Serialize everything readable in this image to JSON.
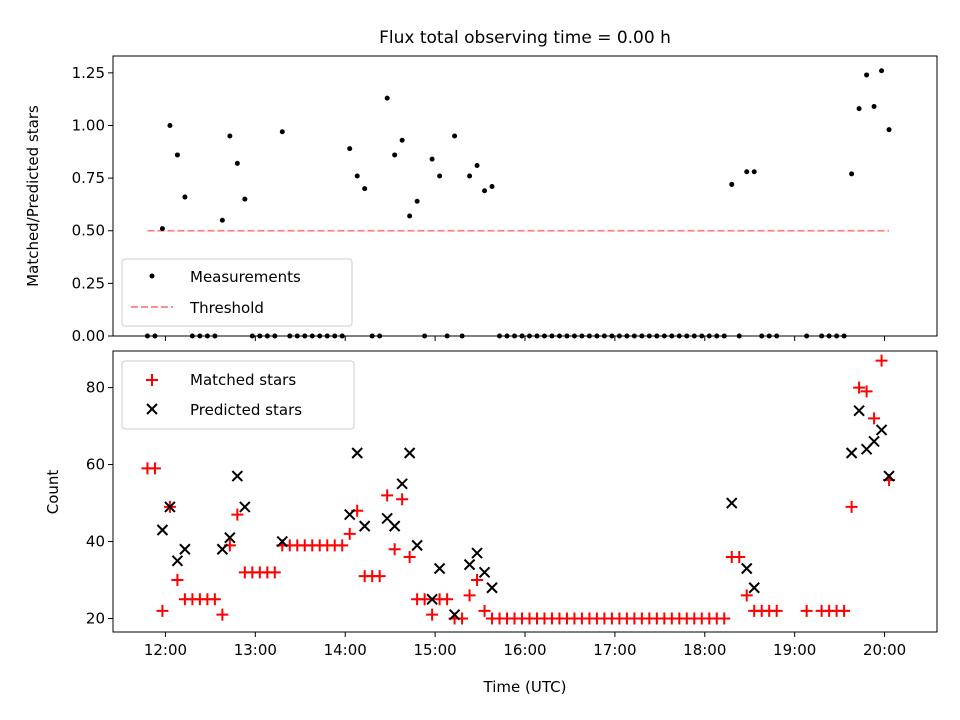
{
  "chart_data": [
    {
      "type": "scatter",
      "title": "Flux total observing time = 0.00 h",
      "xlabel": "",
      "ylabel": "Matched/Predicted stars",
      "xlim": [
        "11:25",
        "20:35"
      ],
      "ylim": [
        0,
        1.33
      ],
      "yticks": [
        "0.00",
        "0.25",
        "0.50",
        "0.75",
        "1.00",
        "1.25"
      ],
      "grid": false,
      "legend_position": "lower-left",
      "series": [
        {
          "name": "Measurements",
          "color": "#000000",
          "marker": "dot",
          "points": [
            [
              "11:48",
              0
            ],
            [
              "11:53",
              0
            ],
            [
              "11:58",
              0.51
            ],
            [
              "12:03",
              1.0
            ],
            [
              "12:08",
              0.86
            ],
            [
              "12:13",
              0.66
            ],
            [
              "12:18",
              0
            ],
            [
              "12:23",
              0
            ],
            [
              "12:28",
              0
            ],
            [
              "12:33",
              0
            ],
            [
              "12:38",
              0.55
            ],
            [
              "12:43",
              0.95
            ],
            [
              "12:48",
              0.82
            ],
            [
              "12:53",
              0.65
            ],
            [
              "12:58",
              0
            ],
            [
              "13:03",
              0
            ],
            [
              "13:08",
              0
            ],
            [
              "13:13",
              0
            ],
            [
              "13:18",
              0.97
            ],
            [
              "13:23",
              0
            ],
            [
              "13:28",
              0
            ],
            [
              "13:33",
              0
            ],
            [
              "13:38",
              0
            ],
            [
              "13:43",
              0
            ],
            [
              "13:48",
              0
            ],
            [
              "13:53",
              0
            ],
            [
              "13:58",
              0
            ],
            [
              "14:03",
              0.89
            ],
            [
              "14:08",
              0.76
            ],
            [
              "14:13",
              0.7
            ],
            [
              "14:18",
              0
            ],
            [
              "14:23",
              0
            ],
            [
              "14:28",
              1.13
            ],
            [
              "14:33",
              0.86
            ],
            [
              "14:38",
              0.93
            ],
            [
              "14:43",
              0.57
            ],
            [
              "14:48",
              0.64
            ],
            [
              "14:53",
              0
            ],
            [
              "14:58",
              0.84
            ],
            [
              "15:03",
              0.76
            ],
            [
              "15:08",
              0
            ],
            [
              "15:13",
              0.95
            ],
            [
              "15:18",
              0
            ],
            [
              "15:23",
              0.76
            ],
            [
              "15:28",
              0.81
            ],
            [
              "15:33",
              0.69
            ],
            [
              "15:38",
              0.71
            ],
            [
              "15:43",
              0
            ],
            [
              "15:48",
              0
            ],
            [
              "15:53",
              0
            ],
            [
              "15:58",
              0
            ],
            [
              "16:03",
              0
            ],
            [
              "16:08",
              0
            ],
            [
              "16:13",
              0
            ],
            [
              "16:18",
              0
            ],
            [
              "16:23",
              0
            ],
            [
              "16:28",
              0
            ],
            [
              "16:33",
              0
            ],
            [
              "16:38",
              0
            ],
            [
              "16:43",
              0
            ],
            [
              "16:48",
              0
            ],
            [
              "16:53",
              0
            ],
            [
              "16:58",
              0
            ],
            [
              "17:03",
              0
            ],
            [
              "17:08",
              0
            ],
            [
              "17:13",
              0
            ],
            [
              "17:18",
              0
            ],
            [
              "17:23",
              0
            ],
            [
              "17:28",
              0
            ],
            [
              "17:33",
              0
            ],
            [
              "17:38",
              0
            ],
            [
              "17:43",
              0
            ],
            [
              "17:48",
              0
            ],
            [
              "17:53",
              0
            ],
            [
              "17:58",
              0
            ],
            [
              "18:03",
              0
            ],
            [
              "18:08",
              0
            ],
            [
              "18:13",
              0
            ],
            [
              "18:18",
              0.72
            ],
            [
              "18:23",
              0
            ],
            [
              "18:28",
              0.78
            ],
            [
              "18:33",
              0.78
            ],
            [
              "18:38",
              0
            ],
            [
              "18:43",
              0
            ],
            [
              "18:48",
              0
            ],
            [
              "19:08",
              0
            ],
            [
              "19:18",
              0
            ],
            [
              "19:23",
              0
            ],
            [
              "19:28",
              0
            ],
            [
              "19:33",
              0
            ],
            [
              "19:38",
              0.77
            ],
            [
              "19:43",
              1.08
            ],
            [
              "19:48",
              1.24
            ],
            [
              "19:53",
              1.09
            ],
            [
              "19:58",
              1.26
            ],
            [
              "20:03",
              0.98
            ]
          ]
        },
        {
          "name": "Threshold",
          "color": "#ff7f7f",
          "style": "dashed",
          "points": [
            [
              "11:48",
              0.5
            ],
            [
              "20:03",
              0.5
            ]
          ]
        }
      ]
    },
    {
      "type": "scatter",
      "title": "",
      "xlabel": "Time (UTC)",
      "ylabel": "Count",
      "xlim": [
        "11:25",
        "20:35"
      ],
      "ylim": [
        16.5,
        89.5
      ],
      "yticks": [
        "20",
        "40",
        "60",
        "80"
      ],
      "xticks": [
        "12:00",
        "13:00",
        "14:00",
        "15:00",
        "16:00",
        "17:00",
        "18:00",
        "19:00",
        "20:00"
      ],
      "grid": false,
      "legend_position": "top-left",
      "series": [
        {
          "name": "Matched stars",
          "color": "#ff0000",
          "marker": "plus",
          "points": [
            [
              "11:48",
              59
            ],
            [
              "11:53",
              59
            ],
            [
              "11:58",
              22
            ],
            [
              "12:03",
              49
            ],
            [
              "12:08",
              30
            ],
            [
              "12:13",
              25
            ],
            [
              "12:18",
              25
            ],
            [
              "12:23",
              25
            ],
            [
              "12:28",
              25
            ],
            [
              "12:33",
              25
            ],
            [
              "12:38",
              21
            ],
            [
              "12:43",
              39
            ],
            [
              "12:48",
              47
            ],
            [
              "12:53",
              32
            ],
            [
              "12:58",
              32
            ],
            [
              "13:03",
              32
            ],
            [
              "13:08",
              32
            ],
            [
              "13:13",
              32
            ],
            [
              "13:18",
              39
            ],
            [
              "13:23",
              39
            ],
            [
              "13:28",
              39
            ],
            [
              "13:33",
              39
            ],
            [
              "13:38",
              39
            ],
            [
              "13:43",
              39
            ],
            [
              "13:48",
              39
            ],
            [
              "13:53",
              39
            ],
            [
              "13:58",
              39
            ],
            [
              "14:03",
              42
            ],
            [
              "14:08",
              48
            ],
            [
              "14:13",
              31
            ],
            [
              "14:18",
              31
            ],
            [
              "14:23",
              31
            ],
            [
              "14:28",
              52
            ],
            [
              "14:33",
              38
            ],
            [
              "14:38",
              51
            ],
            [
              "14:43",
              36
            ],
            [
              "14:48",
              25
            ],
            [
              "14:53",
              25
            ],
            [
              "14:58",
              21
            ],
            [
              "15:03",
              25
            ],
            [
              "15:08",
              25
            ],
            [
              "15:13",
              20
            ],
            [
              "15:18",
              20
            ],
            [
              "15:23",
              26
            ],
            [
              "15:28",
              30
            ],
            [
              "15:33",
              22
            ],
            [
              "15:38",
              20
            ],
            [
              "15:43",
              20
            ],
            [
              "15:48",
              20
            ],
            [
              "15:53",
              20
            ],
            [
              "15:58",
              20
            ],
            [
              "16:03",
              20
            ],
            [
              "16:08",
              20
            ],
            [
              "16:13",
              20
            ],
            [
              "16:18",
              20
            ],
            [
              "16:23",
              20
            ],
            [
              "16:28",
              20
            ],
            [
              "16:33",
              20
            ],
            [
              "16:38",
              20
            ],
            [
              "16:43",
              20
            ],
            [
              "16:48",
              20
            ],
            [
              "16:53",
              20
            ],
            [
              "16:58",
              20
            ],
            [
              "17:03",
              20
            ],
            [
              "17:08",
              20
            ],
            [
              "17:13",
              20
            ],
            [
              "17:18",
              20
            ],
            [
              "17:23",
              20
            ],
            [
              "17:28",
              20
            ],
            [
              "17:33",
              20
            ],
            [
              "17:38",
              20
            ],
            [
              "17:43",
              20
            ],
            [
              "17:48",
              20
            ],
            [
              "17:53",
              20
            ],
            [
              "17:58",
              20
            ],
            [
              "18:03",
              20
            ],
            [
              "18:08",
              20
            ],
            [
              "18:13",
              20
            ],
            [
              "18:18",
              36
            ],
            [
              "18:23",
              36
            ],
            [
              "18:28",
              26
            ],
            [
              "18:33",
              22
            ],
            [
              "18:38",
              22
            ],
            [
              "18:43",
              22
            ],
            [
              "18:48",
              22
            ],
            [
              "19:08",
              22
            ],
            [
              "19:18",
              22
            ],
            [
              "19:23",
              22
            ],
            [
              "19:28",
              22
            ],
            [
              "19:33",
              22
            ],
            [
              "19:38",
              49
            ],
            [
              "19:43",
              80
            ],
            [
              "19:48",
              79
            ],
            [
              "19:53",
              72
            ],
            [
              "19:58",
              87
            ],
            [
              "20:03",
              56
            ]
          ]
        },
        {
          "name": "Predicted stars",
          "color": "#000000",
          "marker": "x",
          "points": [
            [
              "11:58",
              43
            ],
            [
              "12:03",
              49
            ],
            [
              "12:08",
              35
            ],
            [
              "12:13",
              38
            ],
            [
              "12:38",
              38
            ],
            [
              "12:43",
              41
            ],
            [
              "12:48",
              57
            ],
            [
              "12:53",
              49
            ],
            [
              "13:18",
              40
            ],
            [
              "14:03",
              47
            ],
            [
              "14:08",
              63
            ],
            [
              "14:13",
              44
            ],
            [
              "14:28",
              46
            ],
            [
              "14:33",
              44
            ],
            [
              "14:38",
              55
            ],
            [
              "14:43",
              63
            ],
            [
              "14:48",
              39
            ],
            [
              "14:58",
              25
            ],
            [
              "15:03",
              33
            ],
            [
              "15:13",
              21
            ],
            [
              "15:23",
              34
            ],
            [
              "15:28",
              37
            ],
            [
              "15:33",
              32
            ],
            [
              "15:38",
              28
            ],
            [
              "18:18",
              50
            ],
            [
              "18:28",
              33
            ],
            [
              "18:33",
              28
            ],
            [
              "19:38",
              63
            ],
            [
              "19:43",
              74
            ],
            [
              "19:48",
              64
            ],
            [
              "19:53",
              66
            ],
            [
              "19:58",
              69
            ],
            [
              "20:03",
              57
            ]
          ]
        }
      ]
    }
  ]
}
